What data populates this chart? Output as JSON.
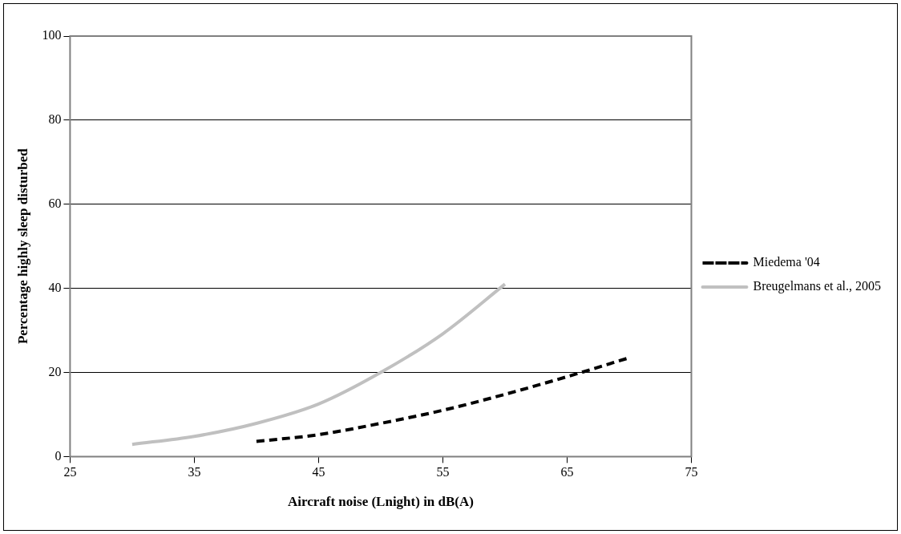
{
  "chart_data": {
    "type": "line",
    "xlabel": "Aircraft noise (Lnight) in dB(A)",
    "ylabel": "Percentage highly sleep disturbed",
    "xlim": [
      25,
      75
    ],
    "xticks": [
      25,
      35,
      45,
      55,
      65,
      75
    ],
    "ylim": [
      0,
      100
    ],
    "yticks": [
      0,
      20,
      40,
      60,
      80,
      100
    ],
    "grid": "y",
    "legend": "right",
    "marker": "none",
    "series": [
      {
        "name": "Miedema '04",
        "color": "#000000",
        "line_style": "dashed",
        "x": [
          40,
          45,
          50,
          55,
          60,
          65,
          70
        ],
        "values": [
          3.6,
          5.2,
          7.9,
          11,
          14.8,
          19,
          23.5
        ]
      },
      {
        "name": "Breugelmans et al., 2005",
        "color": "#c0c0c0",
        "line_style": "solid",
        "x": [
          30,
          35,
          40,
          45,
          50,
          55,
          60
        ],
        "values": [
          2.9,
          4.8,
          7.9,
          12.5,
          20,
          29.2,
          41
        ]
      }
    ]
  }
}
